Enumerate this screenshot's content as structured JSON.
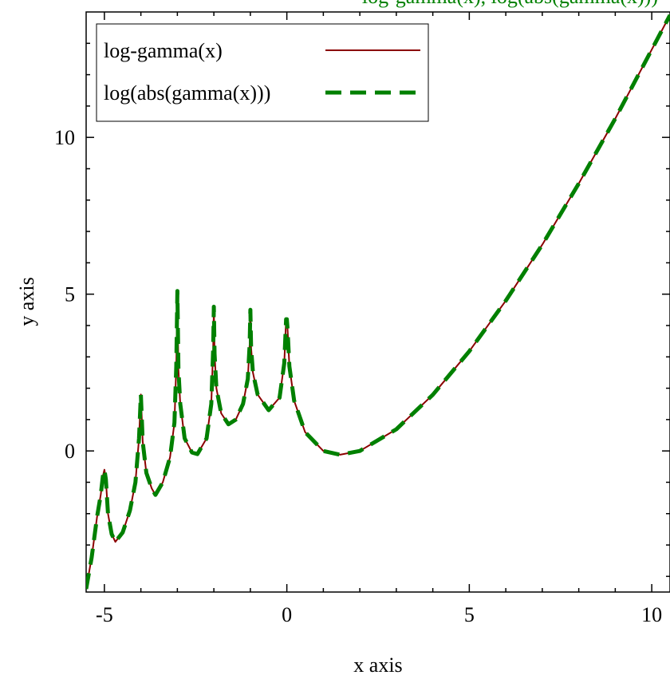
{
  "chart_data": {
    "type": "line",
    "title": "",
    "top_annotation": "log-gamma(x), log(abs(gamma(x)))",
    "xlabel": "x axis",
    "ylabel": "y axis",
    "xlim": [
      -5.5,
      10.5
    ],
    "ylim": [
      -4.5,
      14
    ],
    "x_ticks": [
      -5,
      0,
      5,
      10
    ],
    "x_tick_labels": [
      "-5",
      "0",
      "5",
      "10"
    ],
    "y_ticks": [
      0,
      5,
      10
    ],
    "y_tick_labels": [
      "0",
      "5",
      "10"
    ],
    "grid": false,
    "legend_position": "top-left",
    "series": [
      {
        "name": "log-gamma(x)",
        "color": "#8b0000",
        "style": "solid",
        "x": [
          -5.5,
          -5.35,
          -5.2,
          -5.1,
          -5.04,
          -5.0,
          -4.96,
          -4.9,
          -4.8,
          -4.7,
          -4.5,
          -4.3,
          -4.15,
          -4.05,
          -4.0,
          -3.95,
          -3.85,
          -3.7,
          -3.6,
          -3.4,
          -3.2,
          -3.08,
          -3.03,
          -3.0,
          -2.97,
          -2.92,
          -2.8,
          -2.6,
          -2.45,
          -2.2,
          -2.07,
          -2.02,
          -2.0,
          -1.98,
          -1.93,
          -1.8,
          -1.6,
          -1.4,
          -1.2,
          -1.07,
          -1.02,
          -1.0,
          -0.98,
          -0.93,
          -0.8,
          -0.5,
          -0.2,
          -0.07,
          -0.02,
          0.0,
          0.02,
          0.07,
          0.2,
          0.5,
          1.0,
          1.46,
          2.0,
          3.0,
          4.0,
          5.0,
          6.0,
          7.0,
          8.0,
          9.0,
          10.0,
          10.5
        ],
        "y": [
          -4.4,
          -3.4,
          -2.1,
          -1.4,
          -0.8,
          -0.6,
          -0.9,
          -2.0,
          -2.65,
          -2.9,
          -2.6,
          -1.9,
          -1.0,
          0.4,
          1.8,
          0.3,
          -0.7,
          -1.2,
          -1.4,
          -1.0,
          -0.2,
          0.9,
          2.7,
          5.1,
          2.6,
          1.5,
          0.4,
          -0.05,
          -0.1,
          0.4,
          1.5,
          3.2,
          4.6,
          3.1,
          2.0,
          1.2,
          0.85,
          1.0,
          1.5,
          2.3,
          3.4,
          4.5,
          3.3,
          2.5,
          1.8,
          1.3,
          1.7,
          2.8,
          4.2,
          4.2,
          3.9,
          2.7,
          1.6,
          0.6,
          0.0,
          -0.12,
          0.0,
          0.69,
          1.79,
          3.18,
          4.79,
          6.58,
          8.53,
          10.6,
          12.8,
          13.9
        ]
      },
      {
        "name": "log(abs(gamma(x)))",
        "color": "#008000",
        "style": "dashed",
        "x": [
          -5.5,
          -5.35,
          -5.2,
          -5.1,
          -5.04,
          -5.0,
          -4.96,
          -4.9,
          -4.8,
          -4.7,
          -4.5,
          -4.3,
          -4.15,
          -4.05,
          -4.0,
          -3.95,
          -3.85,
          -3.7,
          -3.6,
          -3.4,
          -3.2,
          -3.08,
          -3.03,
          -3.0,
          -2.97,
          -2.92,
          -2.8,
          -2.6,
          -2.45,
          -2.2,
          -2.07,
          -2.02,
          -2.0,
          -1.98,
          -1.93,
          -1.8,
          -1.6,
          -1.4,
          -1.2,
          -1.07,
          -1.02,
          -1.0,
          -0.98,
          -0.93,
          -0.8,
          -0.5,
          -0.2,
          -0.07,
          -0.02,
          0.0,
          0.02,
          0.07,
          0.2,
          0.5,
          1.0,
          1.46,
          2.0,
          3.0,
          4.0,
          5.0,
          6.0,
          7.0,
          8.0,
          9.0,
          10.0,
          10.5
        ],
        "y": [
          -4.4,
          -3.4,
          -2.1,
          -1.4,
          -0.8,
          -0.6,
          -0.9,
          -2.0,
          -2.65,
          -2.9,
          -2.6,
          -1.9,
          -1.0,
          0.4,
          1.8,
          0.3,
          -0.7,
          -1.2,
          -1.4,
          -1.0,
          -0.2,
          0.9,
          2.7,
          5.1,
          2.6,
          1.5,
          0.4,
          -0.05,
          -0.1,
          0.4,
          1.5,
          3.2,
          4.6,
          3.1,
          2.0,
          1.2,
          0.85,
          1.0,
          1.5,
          2.3,
          3.4,
          4.5,
          3.3,
          2.5,
          1.8,
          1.3,
          1.7,
          2.8,
          4.2,
          4.2,
          3.9,
          2.7,
          1.6,
          0.6,
          0.0,
          -0.12,
          0.0,
          0.69,
          1.79,
          3.18,
          4.79,
          6.58,
          8.53,
          10.6,
          12.8,
          13.9
        ]
      }
    ]
  }
}
